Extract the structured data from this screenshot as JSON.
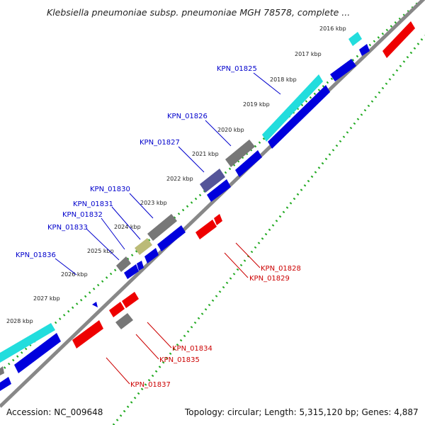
{
  "header": {
    "title": "Klebsiella pneumoniae subsp. pneumoniae MGH 78578, complete ..."
  },
  "footer": {
    "accession": "Accession: NC_009648",
    "summary": "Topology: circular; Length: 5,315,120 bp; Genes: 4,887"
  },
  "colors": {
    "backbone": "#888888",
    "ruler_dots": "#22aa22",
    "forward_cds": "#0000dd",
    "reverse_cds": "#ee0000",
    "rna_cyan": "#22dddd",
    "gray_feature": "#777777",
    "purple_feature": "#555599",
    "olive_feature": "#bbbb77",
    "label_blue": "#0000cc",
    "label_red": "#cc0000"
  },
  "ruler_labels": [
    "2016 kbp",
    "2017 kbp",
    "2018 kbp",
    "2019 kbp",
    "2020 kbp",
    "2021 kbp",
    "2022 kbp",
    "2023 kbp",
    "2024 kbp",
    "2025 kbp",
    "2026 kbp",
    "2027 kbp",
    "2028 kbp"
  ],
  "blue_labels": [
    "KPN_01825",
    "KPN_01826",
    "KPN_01827",
    "KPN_01830",
    "KPN_01831",
    "KPN_01832",
    "KPN_01833",
    "KPN_01836"
  ],
  "red_labels": [
    "KPN_01828",
    "KPN_01829",
    "KPN_01834",
    "KPN_01835",
    "KPN_01837"
  ]
}
